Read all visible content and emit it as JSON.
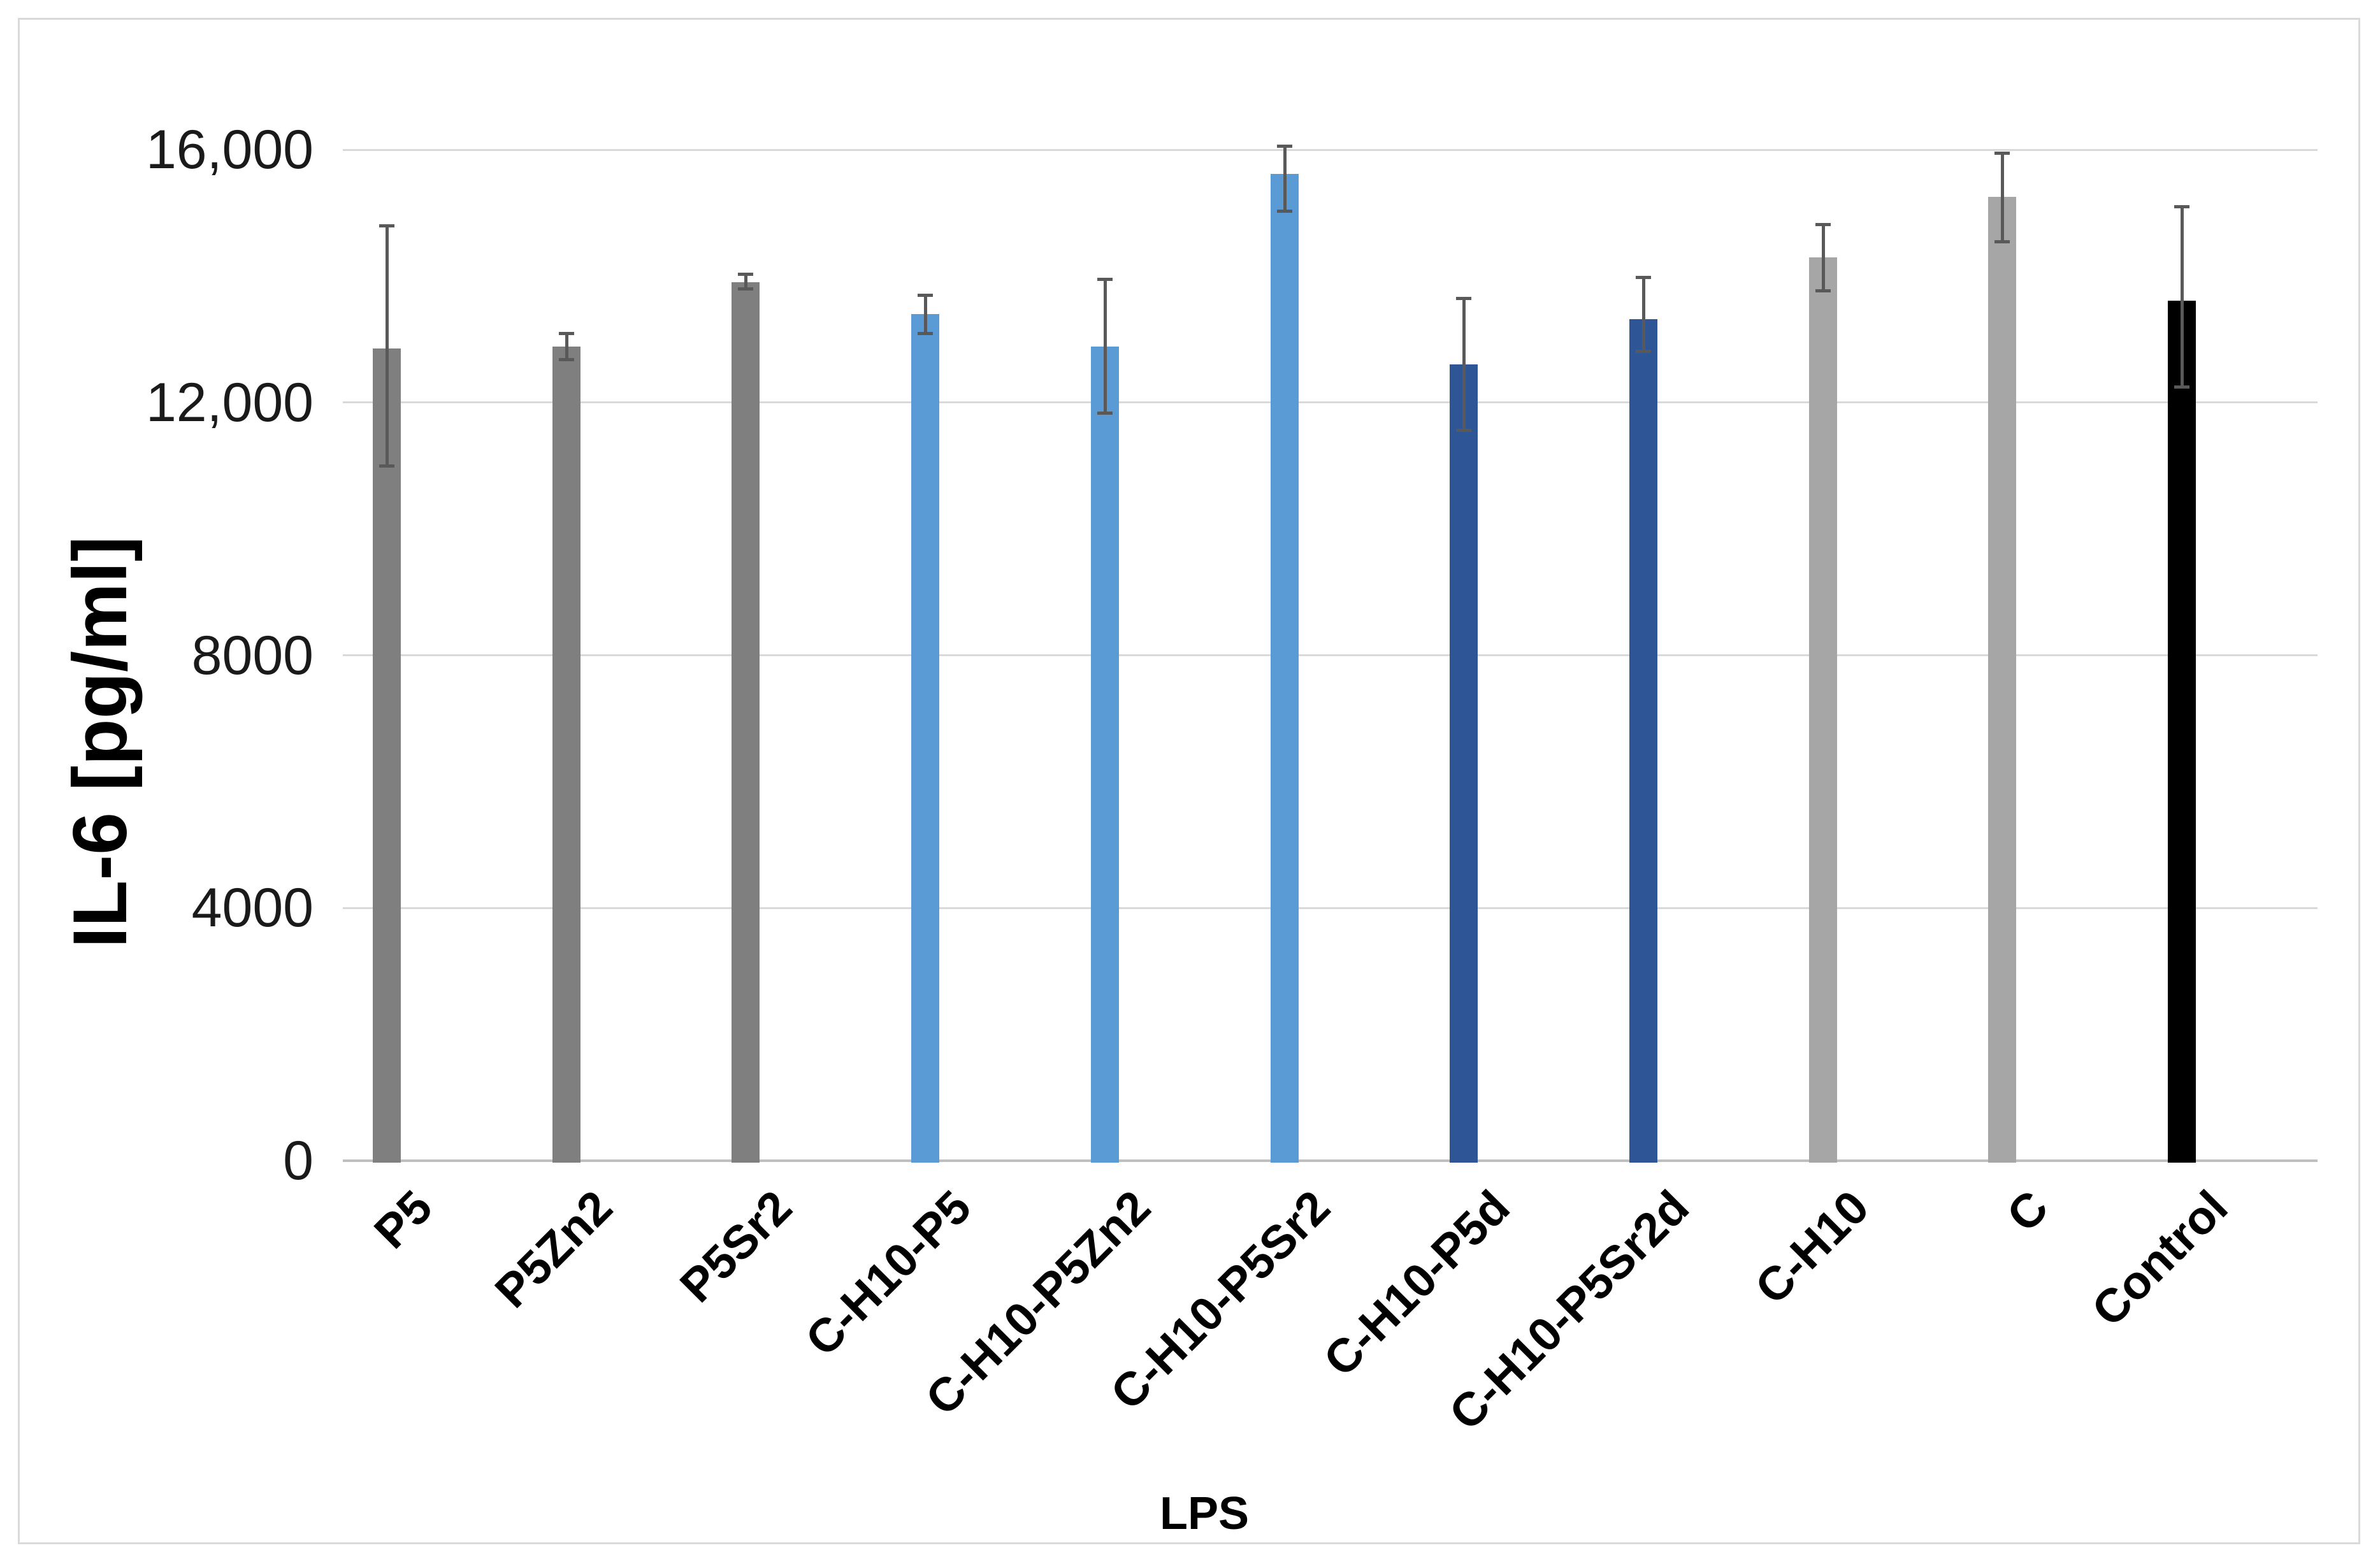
{
  "chart_data": {
    "type": "bar",
    "title": "",
    "xlabel": "LPS",
    "ylabel": "IL-6 [pg/ml]",
    "ylim": [
      0,
      16000
    ],
    "grid": true,
    "legend": false,
    "yticks": [
      {
        "value": 16000,
        "label": "16,000"
      },
      {
        "value": 12000,
        "label": "12,000"
      },
      {
        "value": 8000,
        "label": "8000"
      },
      {
        "value": 4000,
        "label": "4000"
      },
      {
        "value": 0,
        "label": "0"
      }
    ],
    "categories": [
      "P5",
      "P5Zn2",
      "P5Sr2",
      "C-H10-P5",
      "C-H10-P5Zn2",
      "C-H10-P5Sr2",
      "C-H10-P5d",
      "C-H10-P5Sr2d",
      "C-H10",
      "C",
      "Control"
    ],
    "bars": [
      {
        "label": "P5",
        "value": 12850,
        "err_low": 11000,
        "err_high": 14800,
        "color": "#7F7F7F"
      },
      {
        "label": "P5Zn2",
        "value": 12880,
        "err_low": 12680,
        "err_high": 13100,
        "color": "#7F7F7F"
      },
      {
        "label": "P5Sr2",
        "value": 13900,
        "err_low": 13800,
        "err_high": 14030,
        "color": "#7F7F7F"
      },
      {
        "label": "C-H10-P5",
        "value": 13400,
        "err_low": 13100,
        "err_high": 13700,
        "color": "#5B9BD5"
      },
      {
        "label": "C-H10-P5Zn2",
        "value": 12880,
        "err_low": 11840,
        "err_high": 13950,
        "color": "#5B9BD5"
      },
      {
        "label": "C-H10-P5Sr2",
        "value": 15620,
        "err_low": 15030,
        "err_high": 16060,
        "color": "#5B9BD5"
      },
      {
        "label": "C-H10-P5d",
        "value": 12600,
        "err_low": 11560,
        "err_high": 13650,
        "color": "#2E5596"
      },
      {
        "label": "C-H10-P5Sr2d",
        "value": 13320,
        "err_low": 12810,
        "err_high": 13980,
        "color": "#2E5596"
      },
      {
        "label": "C-H10",
        "value": 14300,
        "err_low": 13770,
        "err_high": 14820,
        "color": "#A6A6A6"
      },
      {
        "label": "C",
        "value": 15250,
        "err_low": 14550,
        "err_high": 15950,
        "color": "#A6A6A6"
      },
      {
        "label": "Control",
        "value": 13610,
        "err_low": 12250,
        "err_high": 15100,
        "color": "#000000"
      }
    ],
    "colors": {
      "series_gray": "#7F7F7F",
      "series_light_blue": "#5B9BD5",
      "series_dark_blue": "#2E5596",
      "series_light_gray": "#A6A6A6",
      "series_black": "#000000",
      "error_bar": "#595959",
      "gridline": "#D9D9D9",
      "axis_line": "#BFBFBF",
      "chart_border": "#D9D9D9",
      "text": "#000000"
    }
  }
}
